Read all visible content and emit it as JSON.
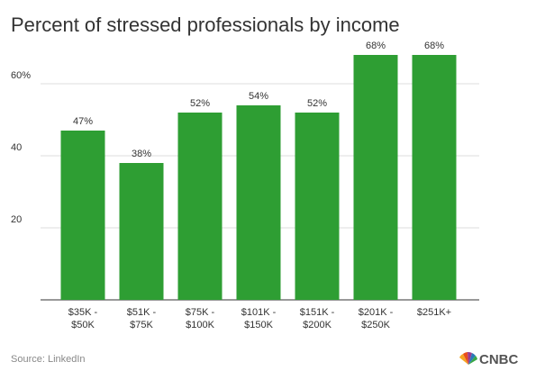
{
  "chart_data": {
    "type": "bar",
    "title": "Percent of stressed professionals by income",
    "categories": [
      "$35K -\n$50K",
      "$51K -\n$75K",
      "$75K -\n$100K",
      "$101K -\n$150K",
      "$151K -\n$200K",
      "$201K -\n$250K",
      "$251K+"
    ],
    "values": [
      47,
      38,
      52,
      54,
      52,
      68,
      68
    ],
    "value_labels": [
      "47%",
      "38%",
      "52%",
      "54%",
      "52%",
      "68%",
      "68%"
    ],
    "color": "#2e9e33",
    "ylim": [
      0,
      70
    ],
    "yticks": [
      20,
      40,
      {
        "value": 60,
        "label": "60%"
      }
    ],
    "grid": true
  },
  "source": "Source: LinkedIn",
  "logo": "CNBC"
}
